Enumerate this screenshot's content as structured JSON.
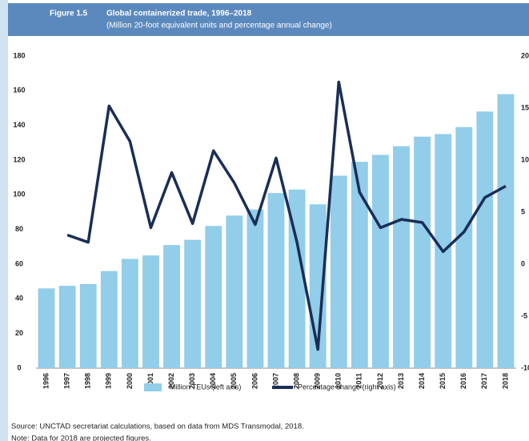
{
  "chart_data": {
    "type": "combo",
    "label": "Figure 1.5",
    "title": "Global containerized trade, 1996–2018",
    "subtitle": "(Million 20-foot equivalent units and percentage annual change)",
    "categories": [
      "1996",
      "1997",
      "1998",
      "1999",
      "2000",
      "2001",
      "2002",
      "2003",
      "2004",
      "2005",
      "2006",
      "2007",
      "2008",
      "2009",
      "2010",
      "2011",
      "2012",
      "2013",
      "2014",
      "2015",
      "2016",
      "2017",
      "2018"
    ],
    "series": [
      {
        "name": "Million TEUs (left axis)",
        "type": "bar",
        "color": "#92cdea",
        "values": [
          46,
          47.5,
          48.5,
          56,
          63,
          65,
          71,
          74,
          82,
          88,
          91.5,
          101,
          103,
          94.5,
          111,
          119,
          123,
          128,
          133.5,
          135,
          139,
          148,
          158
        ]
      },
      {
        "name": "Percentage change (right axis)",
        "type": "line",
        "axis": "y2",
        "color": "#1a2e55",
        "values": [
          null,
          2.8,
          2.1,
          15.2,
          11.8,
          3.5,
          8.8,
          3.9,
          10.9,
          7.8,
          3.8,
          10.2,
          2.1,
          -8.2,
          17.5,
          6.9,
          3.5,
          4.3,
          4.0,
          1.2,
          3.1,
          6.4,
          7.5
        ]
      }
    ],
    "ylim": [
      0,
      180
    ],
    "yticks": [
      0,
      20,
      40,
      60,
      80,
      100,
      120,
      140,
      160,
      180
    ],
    "y2lim": [
      -10,
      20
    ],
    "y2ticks": [
      -10,
      -5,
      0,
      5,
      10,
      15,
      20
    ],
    "grid": false,
    "source": "Source: UNCTAD secretariat calculations, based on data from MDS Transmodal, 2018.",
    "note": "Note: Data for 2018 are projected figures."
  }
}
